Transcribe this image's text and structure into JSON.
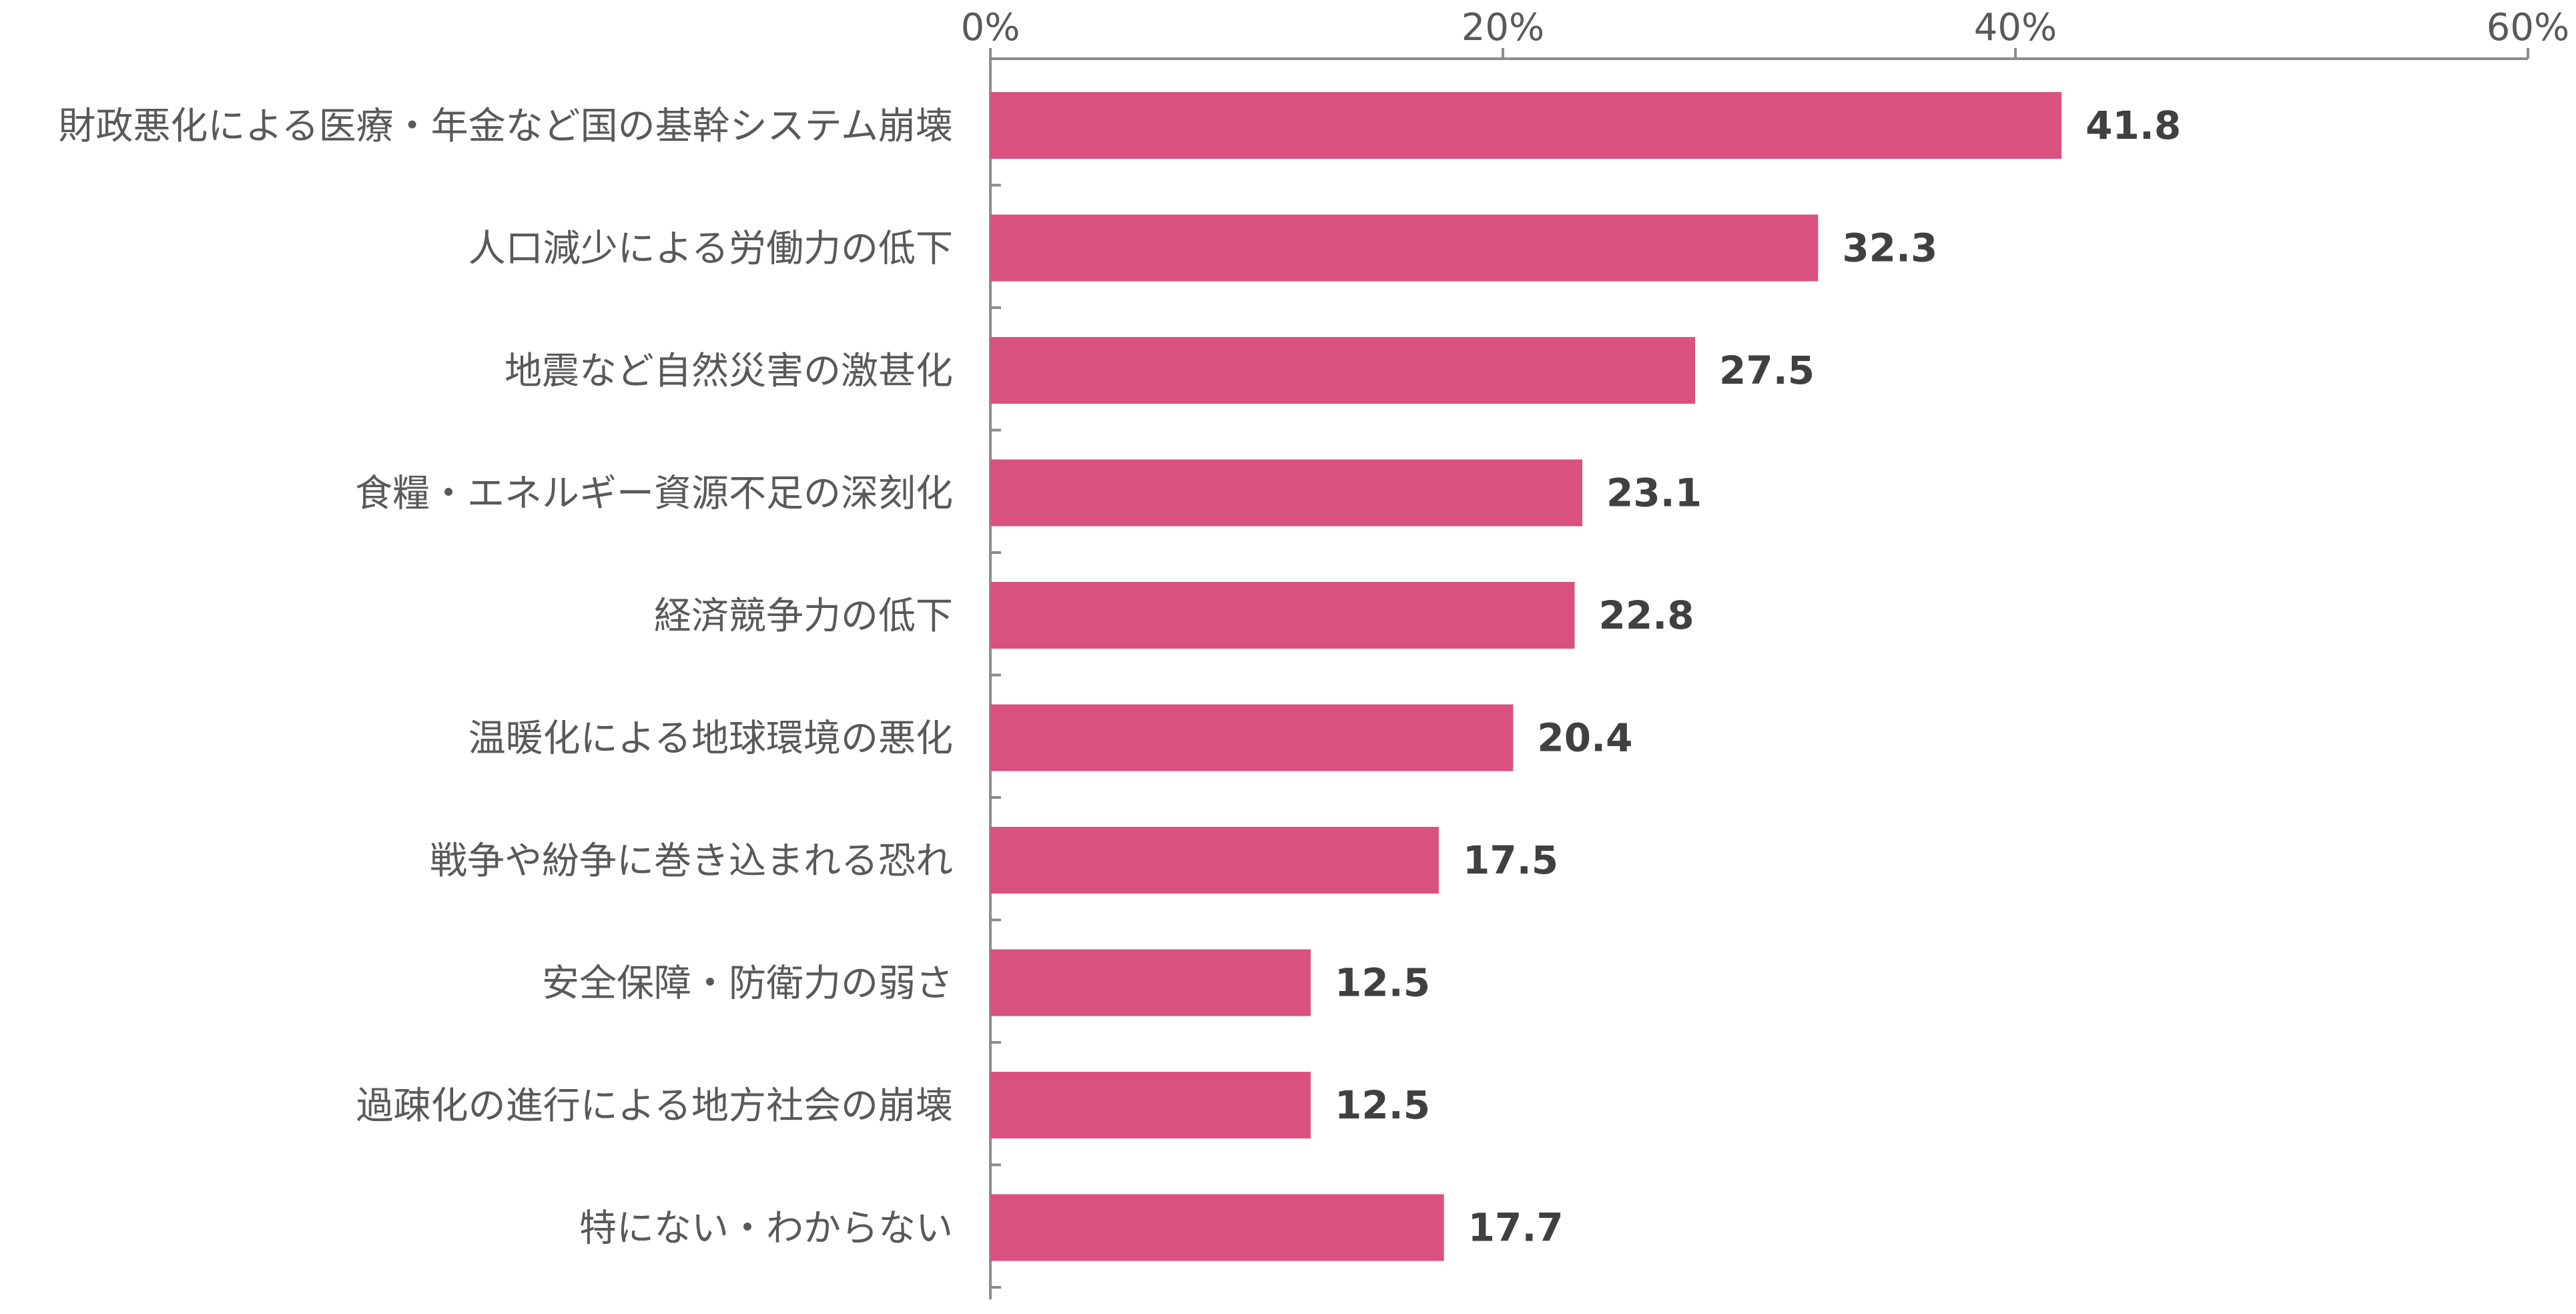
{
  "chart_data": {
    "type": "bar",
    "orientation": "horizontal",
    "title": "",
    "xlabel": "",
    "ylabel": "",
    "categories": [
      "財政悪化による医療・年金など国の基幹システム崩壊",
      "人口減少による労働力の低下",
      "地震など自然災害の激甚化",
      "食糧・エネルギー資源不足の深刻化",
      "経済競争力の低下",
      "温暖化による地球環境の悪化",
      "戦争や紛争に巻き込まれる恐れ",
      "安全保障・防衛力の弱さ",
      "過疎化の進行による地方社会の崩壊",
      "特にない・わからない"
    ],
    "values": [
      41.8,
      32.3,
      27.5,
      23.1,
      22.8,
      20.4,
      17.5,
      12.5,
      12.5,
      17.7
    ],
    "value_labels": [
      "41.8",
      "32.3",
      "27.5",
      "23.1",
      "22.8",
      "20.4",
      "17.5",
      "12.5",
      "12.5",
      "17.7"
    ],
    "xlim": [
      0,
      60
    ],
    "x_ticks": [
      0,
      20,
      40,
      60
    ],
    "x_tick_labels": [
      "0%",
      "20%",
      "40%",
      "60%"
    ],
    "x_axis_position": "top",
    "grid": false,
    "legend": "none",
    "bar_color": "#d9527f",
    "axis_color": "#8c8c8c",
    "label_color": "#595959",
    "value_label_color": "#404040"
  }
}
